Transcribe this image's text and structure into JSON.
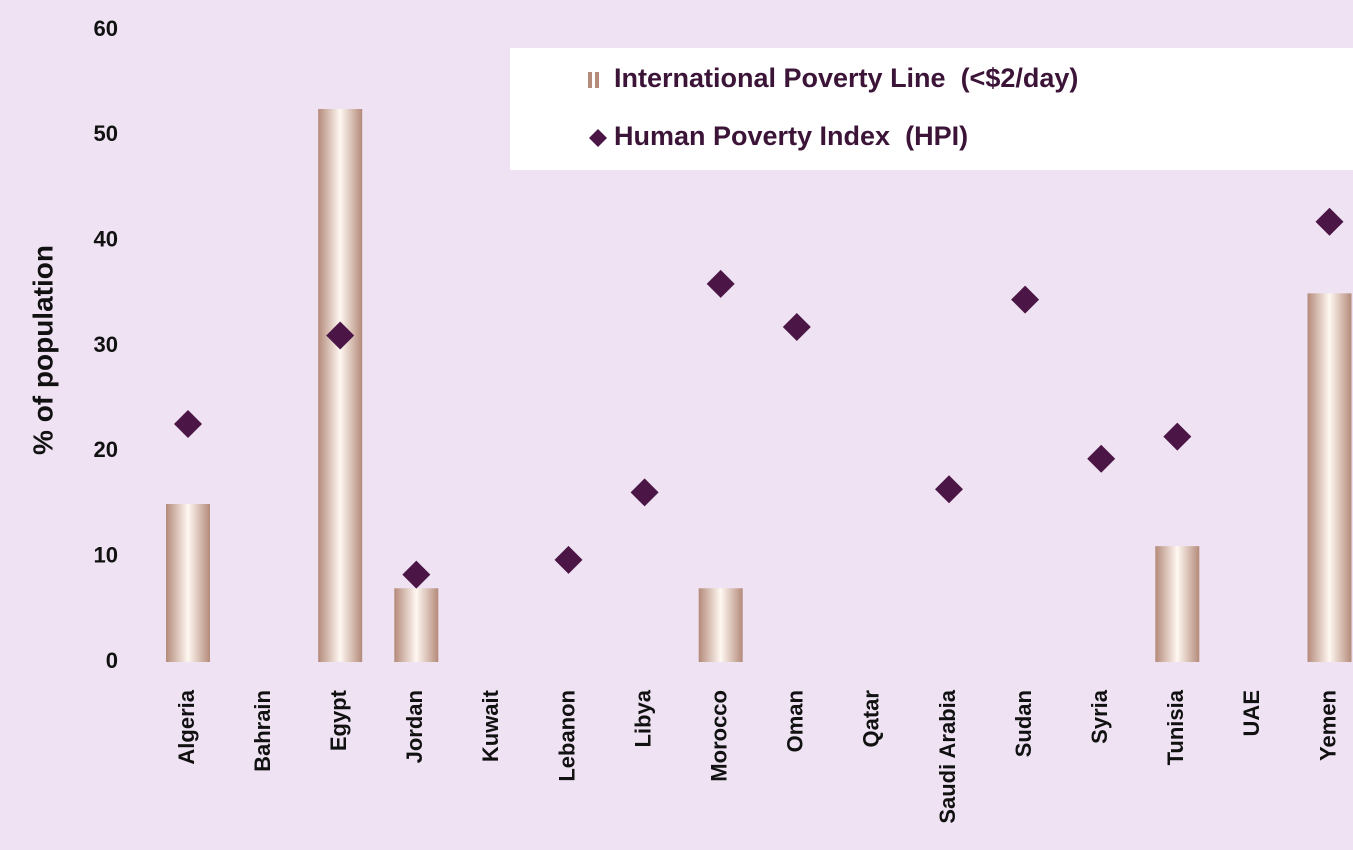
{
  "chart_data": {
    "type": "bar_scatter",
    "y_label": "% of population",
    "categories": [
      "Algeria",
      "Bahrain",
      "Egypt",
      "Jordan",
      "Kuwait",
      "Lebanon",
      "Libya",
      "Morocco",
      "Oman",
      "Qatar",
      "Saudi Arabia",
      "Sudan",
      "Syria",
      "Tunisia",
      "UAE",
      "Yemen"
    ],
    "series": [
      {
        "name": "International Poverty Line  (<$2/day)",
        "kind": "bar",
        "color": "#b48a7a",
        "values": [
          15,
          null,
          52.5,
          7,
          null,
          null,
          null,
          7,
          null,
          null,
          null,
          null,
          null,
          11,
          null,
          35
        ]
      },
      {
        "name": "Human Poverty Index  (HPI)",
        "kind": "diamond",
        "color": "#4b1646",
        "values": [
          22.6,
          null,
          31,
          8.3,
          null,
          9.7,
          16.1,
          35.9,
          31.8,
          null,
          16.4,
          34.4,
          19.3,
          21.4,
          null,
          41.8
        ]
      }
    ],
    "ylim": [
      0,
      60
    ],
    "yticks": [
      0,
      10,
      20,
      30,
      40,
      50,
      60
    ],
    "grid": false,
    "legend": "top-right"
  }
}
